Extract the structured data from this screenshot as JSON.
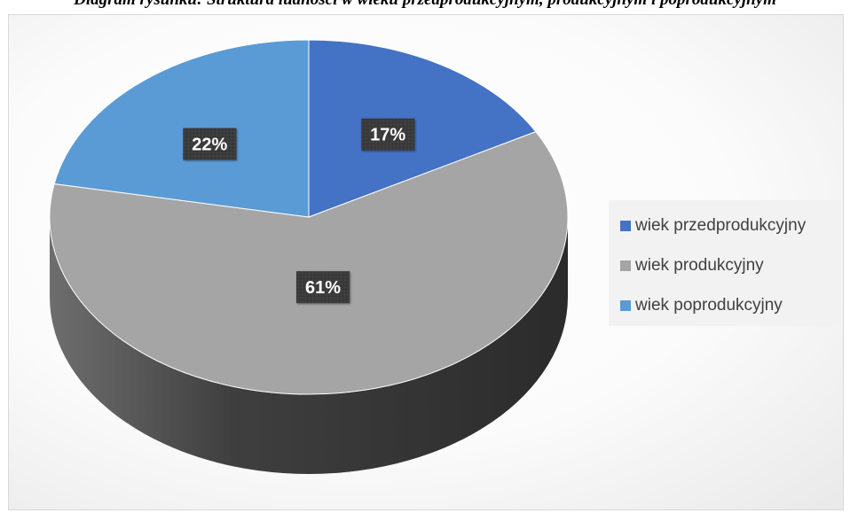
{
  "caption": "Diagram rysunku: Struktura ludności w wieku przedprodukcyjnym, produkcyjnym i poprodukcyjnym",
  "chart_data": {
    "type": "pie",
    "title": "",
    "categories": [
      "wiek przedprodukcyjny",
      "wiek produkcyjny",
      "wiek poprodukcyjny"
    ],
    "values": [
      17,
      61,
      22
    ],
    "labels": [
      "17%",
      "61%",
      "22%"
    ],
    "colors": [
      "#4472c4",
      "#a5a5a5",
      "#5b9bd5"
    ],
    "style": "3d",
    "start_angle_deg": 0,
    "direction": "clockwise",
    "legend_position": "right"
  }
}
